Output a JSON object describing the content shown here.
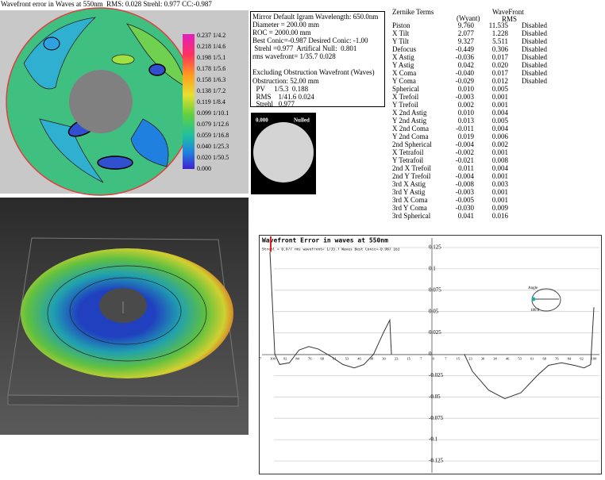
{
  "title": "Wavefront error in Waves at 550nm  RMS: 0.028 Strehl: 0.977 CC:-0.987",
  "colorbar_labels": [
    "0.237 1/4.2",
    "0.218 1/4.6",
    "0.198 1/5.1",
    "0.178 1/5.6",
    "0.158 1/6.3",
    "0.138 1/7.2",
    "0.119 1/8.4",
    "0.099 1/10.1",
    "0.079 1/12.6",
    "0.059 1/16.8",
    "0.040 1/25.3",
    "0.020 1/50.5",
    "0.000"
  ],
  "info_lines": [
    "Mirror Default Igram Wavelength: 650.0nm",
    "Diameter = 200.00 mm",
    "ROC = 2000.00 mm",
    "Best Conic=-0.987 Desired Conic: -1.00",
    " Strehl =0.977  Artifical Null:  0.801",
    "rms wavefront= 1/35.7 0.028",
    "Excluding Obstruction Wavefront (Waves)",
    "Obstruction: 52.00 mm",
    "  PV     1/5.3  0.188",
    "  RMS    1/41.6 0.024",
    "  Strehl   0.977"
  ],
  "nulled_image": {
    "value": "0.000",
    "label": "Nulled"
  },
  "zernike": {
    "title": "Zernike Terms",
    "wyant": "(Wyant)",
    "wavefront": "WaveFront",
    "rms": "RMS",
    "rows": [
      [
        "Piston",
        "9.760",
        "11.535",
        "Disabled"
      ],
      [
        "X Tilt",
        "2.077",
        "1.228",
        "Disabled"
      ],
      [
        "Y Tilt",
        "9.327",
        "5.511",
        "Disabled"
      ],
      [
        "Defocus",
        "-0.449",
        "0.306",
        "Disabled"
      ],
      [
        "X Astig",
        "-0.036",
        "0.017",
        "Disabled"
      ],
      [
        "Y Astig",
        "0.042",
        "0.020",
        "Disabled"
      ],
      [
        "X Coma",
        "-0.040",
        "0.017",
        "Disabled"
      ],
      [
        "Y Coma",
        "-0.029",
        "0.012",
        "Disabled"
      ],
      [
        "Spherical",
        "0.010",
        "0.005"
      ],
      [
        "X Trefoil",
        "-0.003",
        "0.001"
      ],
      [
        "Y Trefoil",
        "0.002",
        "0.001"
      ],
      [
        "X 2nd Astig",
        "0.010",
        "0.004"
      ],
      [
        "Y 2nd Astig",
        "0.013",
        "0.005"
      ],
      [
        "X 2nd Coma",
        "-0.011",
        "0.004"
      ],
      [
        "Y 2nd Coma",
        "0.019",
        "0.006"
      ],
      [
        "2nd Spherical",
        "-0.004",
        "0.002"
      ],
      [
        "X Tetrafoil",
        "-0.002",
        "0.001"
      ],
      [
        "Y Tetrafoil",
        "-0.021",
        "0.008"
      ],
      [
        "2nd X Trefoil",
        "0.011",
        "0.004"
      ],
      [
        "2nd Y Trefoil",
        "-0.004",
        "0.001"
      ],
      [
        "3rd X Astig",
        "-0.008",
        "0.003"
      ],
      [
        "3rd Y Astig",
        "-0.003",
        "0.001"
      ],
      [
        "3rd X Coma",
        "-0.005",
        "0.001"
      ],
      [
        "3rd Y Coma",
        "-0.030",
        "0.009"
      ],
      [
        "3rd Spherical",
        "0.041",
        "0.016"
      ]
    ]
  },
  "profile": {
    "type": "line",
    "title": "Wavefront Error in waves at 550nm",
    "subtitle": "Strehl = 0.977 rms wavefront= 1/35.7 Waves Best Conic=-0.987 163",
    "x_tick_labels": [
      "7",
      "100",
      "92",
      "84",
      "76",
      "68",
      "61",
      "53",
      "46",
      "38",
      "30",
      "23",
      "15",
      "7",
      "0",
      "7",
      "15",
      "23",
      "30",
      "38",
      "46",
      "53",
      "61",
      "68",
      "76",
      "84",
      "92",
      "100"
    ],
    "xlim": [
      -100,
      100
    ],
    "ylim": [
      -0.125,
      0.125
    ],
    "yticks": [
      0.125,
      0.1,
      0.075,
      0.05,
      0.025,
      0,
      -0.025,
      -0.05,
      -0.075,
      -0.1,
      -0.125
    ],
    "x": [
      -100,
      -97,
      -94,
      -88,
      -82,
      -76,
      -70,
      -62,
      -55,
      -48,
      -42,
      -36,
      -30,
      -26,
      -25,
      0,
      20,
      25,
      35,
      45,
      55,
      65,
      72,
      80,
      88,
      94,
      98,
      100
    ],
    "values": [
      0.12,
      0.0,
      -0.012,
      -0.01,
      0.005,
      0.009,
      0.006,
      -0.003,
      -0.012,
      -0.016,
      -0.012,
      0.0,
      0.025,
      0.04,
      0.0,
      null,
      0.0,
      -0.02,
      -0.042,
      -0.052,
      -0.045,
      -0.025,
      -0.013,
      -0.01,
      -0.013,
      -0.016,
      -0.012,
      0.055
    ],
    "color": "#333333",
    "angle_title": "Angle",
    "angle_value": "180.0"
  }
}
